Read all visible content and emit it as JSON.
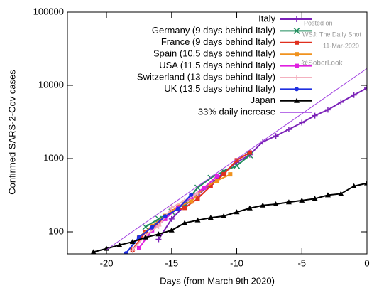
{
  "chart_data": {
    "type": "line",
    "x_label": "Days (from March 9th 2020)",
    "y_label": "Confirmed SARS-2-Cov cases",
    "xlim": [
      -23,
      0
    ],
    "xticks": [
      -20,
      -15,
      -10,
      -5,
      0
    ],
    "ylim": [
      50,
      100000
    ],
    "yticks": [
      100,
      1000,
      10000,
      100000
    ],
    "log_y": true,
    "grid": false,
    "legend": "top-right",
    "annotations": [
      "Posted on",
      "WSJ: The Daily Shot",
      "11-Mar-2020",
      "@SoberLook"
    ],
    "series": [
      {
        "name": "Italy",
        "color": "#7b22b8",
        "marker": "plus",
        "x": [
          -16,
          -15,
          -14,
          -13,
          -12,
          -11,
          -10,
          -9,
          -8,
          -7,
          -6,
          -5,
          -4,
          -3,
          -2,
          -1,
          0
        ],
        "values": [
          79,
          150,
          227,
          320,
          445,
          650,
          888,
          1128,
          1694,
          2036,
          2502,
          3089,
          3858,
          4636,
          5883,
          7375,
          9172
        ]
      },
      {
        "name": "Germany (9 days behind Italy)",
        "color": "#1f8c5c",
        "marker": "cross",
        "x": [
          -17,
          -16,
          -15,
          -14,
          -13,
          -12,
          -11,
          -10,
          -9
        ],
        "values": [
          117,
          150,
          188,
          240,
          400,
          545,
          670,
          800,
          1112
        ]
      },
      {
        "name": "France (9 days behind Italy)",
        "color": "#e0301e",
        "marker": "square",
        "x": [
          -18,
          -17,
          -16,
          -15,
          -14,
          -13,
          -12,
          -11,
          -10,
          -9
        ],
        "values": [
          57,
          100,
          130,
          191,
          212,
          285,
          423,
          613,
          949,
          1209
        ]
      },
      {
        "name": "Spain (10.5 days behind Italy)",
        "color": "#f0921e",
        "marker": "square",
        "x": [
          -17.5,
          -16.5,
          -15.5,
          -14.5,
          -13.5,
          -12.5,
          -11.5,
          -10.5
        ],
        "values": [
          85,
          120,
          165,
          222,
          259,
          400,
          500,
          610
        ]
      },
      {
        "name": "USA (11.5 days behind Italy)",
        "color": "#e020e0",
        "marker": "square",
        "x": [
          -17.5,
          -16.5,
          -15.5,
          -14.5,
          -13.5,
          -12.5,
          -11.5
        ],
        "values": [
          60,
          105,
          150,
          215,
          300,
          400,
          580
        ]
      },
      {
        "name": "Switzerland (13 days behind Italy)",
        "color": "#f4b0bf",
        "marker": "plus",
        "x": [
          -18,
          -17,
          -16,
          -15,
          -14,
          -13
        ],
        "values": [
          56,
          90,
          120,
          214,
          268,
          337
        ]
      },
      {
        "name": "UK (13.5 days behind Italy)",
        "color": "#1f2fe0",
        "marker": "circle",
        "x": [
          -18.5,
          -17.5,
          -16.5,
          -15.5,
          -14.5,
          -13.5
        ],
        "values": [
          51,
          85,
          115,
          163,
          206,
          321
        ]
      },
      {
        "name": "Japan",
        "color": "#000000",
        "marker": "triangle",
        "x": [
          -21,
          -20,
          -19,
          -18,
          -17,
          -16,
          -15,
          -14,
          -13,
          -12,
          -11,
          -10,
          -9,
          -8,
          -7,
          -6,
          -5,
          -4,
          -3,
          -2,
          -1,
          0
        ],
        "values": [
          53,
          59,
          66,
          73,
          84,
          93,
          105,
          132,
          144,
          156,
          164,
          186,
          210,
          230,
          239,
          254,
          268,
          284,
          317,
          331,
          420,
          461
        ]
      },
      {
        "name": "33% daily increase",
        "color": "#a040e0",
        "marker": "none",
        "x": [
          -20,
          0
        ],
        "values": [
          57,
          17000
        ]
      }
    ]
  }
}
